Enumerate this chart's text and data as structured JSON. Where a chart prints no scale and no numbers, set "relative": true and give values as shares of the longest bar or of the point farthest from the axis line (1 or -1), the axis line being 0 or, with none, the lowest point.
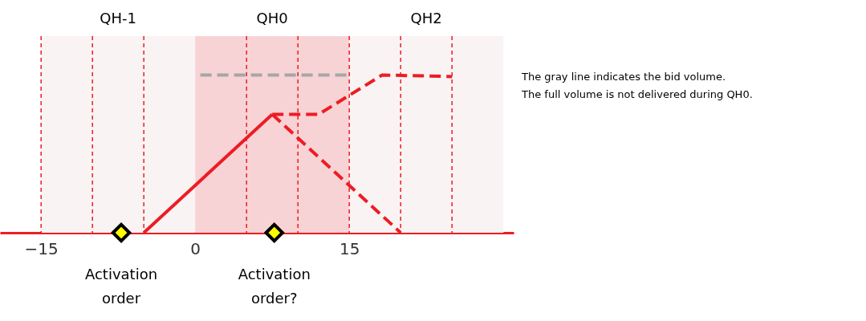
{
  "chart_data": {
    "type": "line",
    "relative": true,
    "xlim": [
      -19,
      31
    ],
    "xticks": [
      -15,
      0,
      15
    ],
    "grid": false,
    "bands": [
      {
        "axis": "x",
        "from": -15,
        "to": 0,
        "label": "QH-1",
        "color": "#f9f3f3"
      },
      {
        "axis": "x",
        "from": 0,
        "to": 15,
        "label": "QH0",
        "color": "#f8d3d5"
      },
      {
        "axis": "x",
        "from": 15,
        "to": 30,
        "label": "QH2",
        "color": "#f9f3f3"
      }
    ],
    "ref_lines": [
      {
        "axis": "x",
        "value": -15,
        "color": "#ed1c24",
        "line_style": "dashed"
      },
      {
        "axis": "x",
        "value": -10,
        "color": "#ed1c24",
        "line_style": "dashed"
      },
      {
        "axis": "x",
        "value": -5,
        "color": "#ed1c24",
        "line_style": "dashed"
      },
      {
        "axis": "x",
        "value": 5,
        "color": "#ed1c24",
        "line_style": "dashed"
      },
      {
        "axis": "x",
        "value": 10,
        "color": "#ed1c24",
        "line_style": "dashed"
      },
      {
        "axis": "x",
        "value": 15,
        "color": "#ed1c24",
        "line_style": "dashed"
      },
      {
        "axis": "x",
        "value": 20,
        "color": "#ed1c24",
        "line_style": "dashed"
      },
      {
        "axis": "x",
        "value": 25,
        "color": "#ed1c24",
        "line_style": "dashed"
      }
    ],
    "series": [
      {
        "color": "#a6a6a6",
        "line_style": "dashed",
        "x": [
          0.5,
          15
        ],
        "values": [
          1,
          1
        ]
      },
      {
        "color": "#ed1c24",
        "line_style": "solid",
        "x": [
          -5,
          7.5
        ],
        "values": [
          0,
          0.75
        ]
      },
      {
        "color": "#ed1c24",
        "line_style": "dashed",
        "x": [
          7.5,
          12,
          18.2,
          25
        ],
        "values": [
          0.75,
          0.75,
          1,
          0.99
        ]
      },
      {
        "color": "#ed1c24",
        "line_style": "dashed",
        "x": [
          7.5,
          20
        ],
        "values": [
          0.75,
          0
        ]
      },
      {
        "type": "scatter",
        "color": "#ffff00",
        "marker": "diamond",
        "x": [
          -7.2,
          7.7
        ],
        "values": [
          0,
          0
        ]
      }
    ],
    "annotations": [
      {
        "text": "Activation order",
        "x": -7.2,
        "y": 0
      },
      {
        "text": "Activation order?",
        "x": 7.7,
        "y": 0
      },
      "The gray line indicates the bid volume.",
      "The full volume is not delivered during QH0."
    ]
  }
}
